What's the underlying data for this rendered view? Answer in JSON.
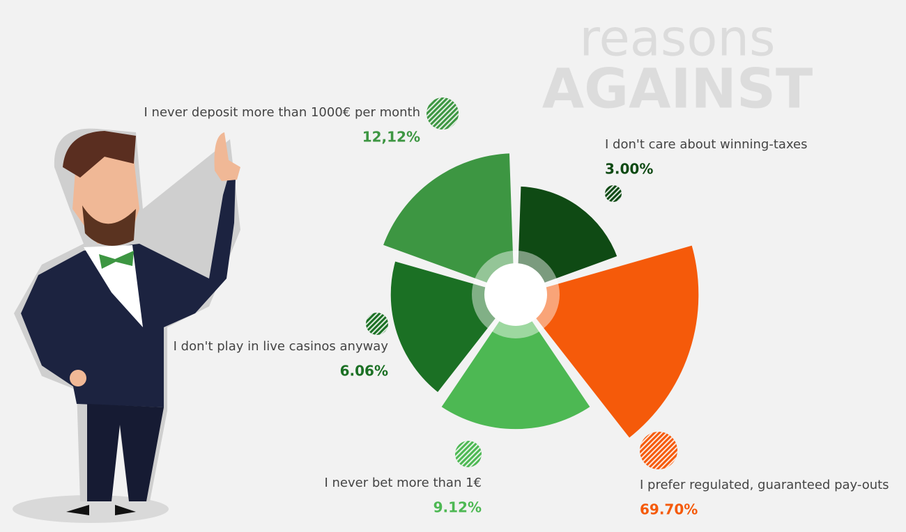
{
  "chart_data": {
    "type": "polar",
    "title": "reasons",
    "subtitle": "AGAINST",
    "radial_scale": "log",
    "categories": [
      "I don't care about winning-taxes",
      "I prefer regulated, guaranteed pay-outs",
      "I never bet more than 1€",
      "I don't play in live casinos anyway",
      "I never deposit more than 1000€ per month"
    ],
    "values": [
      3.0,
      69.7,
      9.12,
      6.06,
      12.12
    ],
    "value_labels": [
      "3.00%",
      "69.70%",
      "9.12%",
      "6.06%",
      "12,12%"
    ],
    "colors": [
      "#0f4a14",
      "#f55a0a",
      "#4db853",
      "#1b7024",
      "#3d9642"
    ]
  }
}
